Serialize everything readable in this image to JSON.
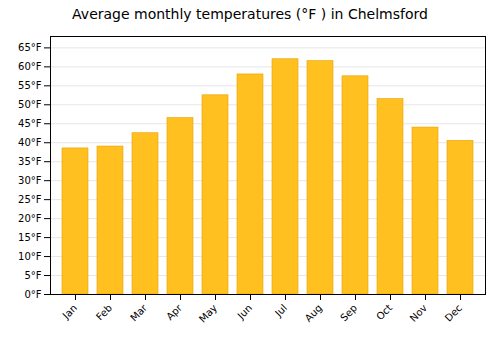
{
  "chart_data": {
    "type": "bar",
    "title": "Average monthly temperatures (°F ) in Chelmsford",
    "categories": [
      "Jan",
      "Feb",
      "Mar",
      "Apr",
      "May",
      "Jun",
      "Jul",
      "Aug",
      "Sep",
      "Oct",
      "Nov",
      "Dec"
    ],
    "values": [
      38.5,
      39.0,
      42.5,
      46.5,
      52.5,
      58.0,
      62.0,
      61.5,
      57.5,
      51.5,
      44.0,
      40.5
    ],
    "color": "#FFC020",
    "ylim": [
      0,
      68
    ],
    "yticks": [
      {
        "value": 0,
        "label": "0°F"
      },
      {
        "value": 5,
        "label": "5°F"
      },
      {
        "value": 10,
        "label": "10°F"
      },
      {
        "value": 15,
        "label": "15°F"
      },
      {
        "value": 20,
        "label": "20°F"
      },
      {
        "value": 25,
        "label": "25°F"
      },
      {
        "value": 30,
        "label": "30°F"
      },
      {
        "value": 35,
        "label": "35°F"
      },
      {
        "value": 40,
        "label": "40°F"
      },
      {
        "value": 45,
        "label": "45°F"
      },
      {
        "value": 50,
        "label": "50°F"
      },
      {
        "value": 55,
        "label": "55°F"
      },
      {
        "value": 60,
        "label": "60°F"
      },
      {
        "value": 65,
        "label": "65°F"
      }
    ],
    "grid": true
  }
}
